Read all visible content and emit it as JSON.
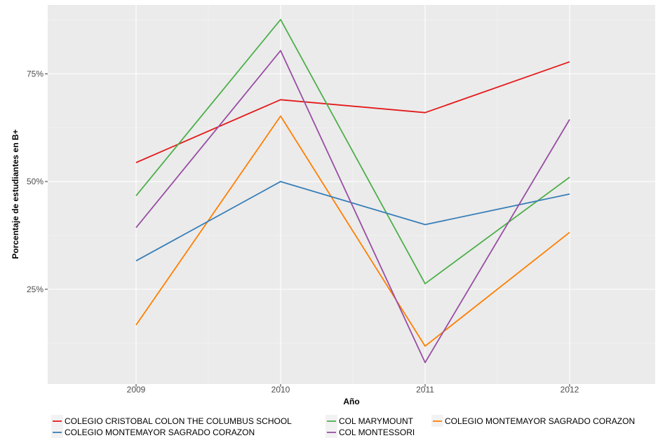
{
  "chart_data": {
    "type": "line",
    "x": [
      "2009",
      "2010",
      "2011",
      "2012"
    ],
    "xlabel": "Año",
    "ylabel": "Porcentaje de estudiantes en B+",
    "y_ticks": [
      {
        "value": 25,
        "label": "25%"
      },
      {
        "value": 50,
        "label": "50%"
      },
      {
        "value": 75,
        "label": "75%"
      }
    ],
    "ylim": [
      3,
      91
    ],
    "grid": true,
    "legend_position": "bottom",
    "series": [
      {
        "name": "COLEGIO CRISTOBAL COLON THE COLUMBUS SCHOOL",
        "color": "#e41a1c",
        "values": [
          54.4,
          69.0,
          66.0,
          77.8
        ]
      },
      {
        "name": "COL MARYMOUNT",
        "color": "#4daf4a",
        "values": [
          46.7,
          87.6,
          26.3,
          51.0
        ]
      },
      {
        "name": "COLEGIO MONTEMAYOR SAGRADO CORAZON",
        "color": "#ff7f00",
        "values": [
          16.7,
          65.2,
          11.8,
          38.2
        ]
      },
      {
        "name": "COLEGIO MONTEMAYOR SAGRADO CORAZON",
        "color": "#377eb8",
        "values": [
          31.6,
          50.0,
          40.0,
          47.1
        ]
      },
      {
        "name": "COL MONTESSORI",
        "color": "#984ea3",
        "values": [
          39.3,
          80.4,
          8.0,
          64.4
        ]
      }
    ]
  }
}
